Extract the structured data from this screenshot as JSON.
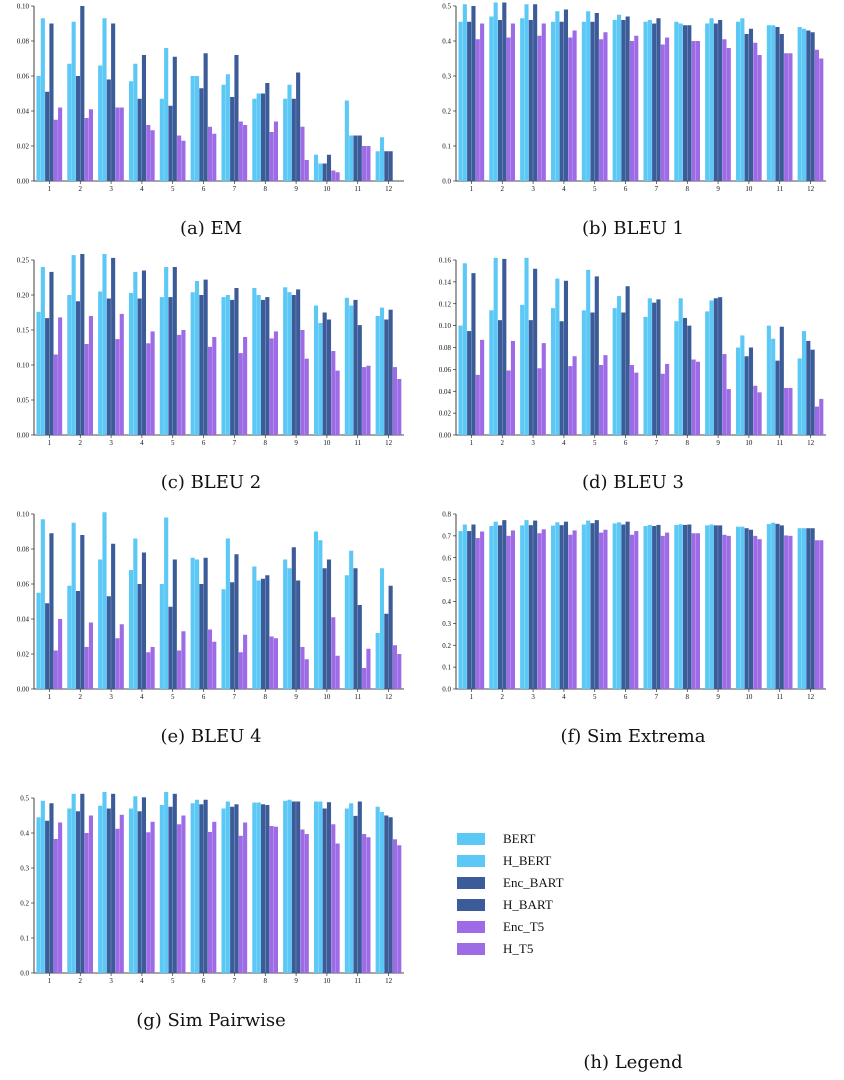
{
  "legend": {
    "items": [
      {
        "label": "BERT",
        "color": "#5BC8F5"
      },
      {
        "label": "H_BERT",
        "color": "#5BC8F5"
      },
      {
        "label": "Enc_BART",
        "color": "#3C5C99"
      },
      {
        "label": "H_BART",
        "color": "#3C5C99"
      },
      {
        "label": "Enc_T5",
        "color": "#9E6BE6"
      },
      {
        "label": "H_T5",
        "color": "#9E6BE6"
      }
    ],
    "caption": "(h) Legend"
  },
  "chart_data": [
    {
      "type": "bar",
      "caption": "(a) EM",
      "categories": [
        "1",
        "2",
        "3",
        "4",
        "5",
        "6",
        "7",
        "8",
        "9",
        "10",
        "11",
        "12"
      ],
      "ylim": [
        0,
        0.1
      ],
      "yticks": [
        "0.00",
        "0.02",
        "0.04",
        "0.06",
        "0.08",
        "0.10"
      ],
      "series": [
        {
          "name": "BERT",
          "color": "#5BC8F5",
          "values": [
            0.06,
            0.067,
            0.066,
            0.057,
            0.047,
            0.06,
            0.055,
            0.047,
            0.047,
            0.015,
            0.046,
            0.017
          ]
        },
        {
          "name": "H_BERT",
          "color": "#5BC8F5",
          "values": [
            0.093,
            0.091,
            0.093,
            0.067,
            0.076,
            0.06,
            0.061,
            0.05,
            0.055,
            0.01,
            0.026,
            0.025
          ]
        },
        {
          "name": "Enc_BART",
          "color": "#3C5C99",
          "values": [
            0.051,
            0.06,
            0.058,
            0.047,
            0.043,
            0.053,
            0.048,
            0.05,
            0.047,
            0.01,
            0.026,
            0.017
          ]
        },
        {
          "name": "H_BART",
          "color": "#3C5C99",
          "values": [
            0.09,
            0.1,
            0.09,
            0.072,
            0.071,
            0.073,
            0.072,
            0.056,
            0.062,
            0.015,
            0.026,
            0.017
          ]
        },
        {
          "name": "Enc_T5",
          "color": "#9E6BE6",
          "values": [
            0.035,
            0.036,
            0.042,
            0.032,
            0.026,
            0.031,
            0.034,
            0.028,
            0.031,
            0.006,
            0.02,
            0.0
          ]
        },
        {
          "name": "H_T5",
          "color": "#9E6BE6",
          "values": [
            0.042,
            0.041,
            0.042,
            0.029,
            0.023,
            0.027,
            0.032,
            0.034,
            0.012,
            0.005,
            0.02,
            0.0
          ]
        }
      ]
    },
    {
      "type": "bar",
      "caption": "(b) BLEU 1",
      "categories": [
        "1",
        "2",
        "3",
        "4",
        "5",
        "6",
        "7",
        "8",
        "9",
        "10",
        "11",
        "12"
      ],
      "ylim": [
        0,
        0.5
      ],
      "yticks": [
        "0.0",
        "0.1",
        "0.2",
        "0.3",
        "0.4",
        "0.5"
      ],
      "series": [
        {
          "name": "BERT",
          "color": "#5BC8F5",
          "values": [
            0.455,
            0.47,
            0.465,
            0.455,
            0.455,
            0.46,
            0.455,
            0.455,
            0.45,
            0.455,
            0.445,
            0.44
          ]
        },
        {
          "name": "H_BERT",
          "color": "#5BC8F5",
          "values": [
            0.505,
            0.51,
            0.505,
            0.485,
            0.485,
            0.475,
            0.46,
            0.45,
            0.465,
            0.465,
            0.445,
            0.435
          ]
        },
        {
          "name": "Enc_BART",
          "color": "#3C5C99",
          "values": [
            0.455,
            0.46,
            0.46,
            0.455,
            0.455,
            0.46,
            0.45,
            0.445,
            0.45,
            0.42,
            0.44,
            0.43
          ]
        },
        {
          "name": "H_BART",
          "color": "#3C5C99",
          "values": [
            0.5,
            0.51,
            0.505,
            0.49,
            0.48,
            0.47,
            0.465,
            0.445,
            0.46,
            0.435,
            0.42,
            0.425
          ]
        },
        {
          "name": "Enc_T5",
          "color": "#9E6BE6",
          "values": [
            0.405,
            0.41,
            0.415,
            0.41,
            0.405,
            0.4,
            0.39,
            0.4,
            0.405,
            0.395,
            0.365,
            0.375
          ]
        },
        {
          "name": "H_T5",
          "color": "#9E6BE6",
          "values": [
            0.45,
            0.45,
            0.45,
            0.43,
            0.425,
            0.415,
            0.41,
            0.4,
            0.38,
            0.36,
            0.365,
            0.35
          ]
        }
      ]
    },
    {
      "type": "bar",
      "caption": "(c) BLEU 2",
      "categories": [
        "1",
        "2",
        "3",
        "4",
        "5",
        "6",
        "7",
        "8",
        "9",
        "10",
        "11",
        "12"
      ],
      "ylim": [
        0,
        0.25
      ],
      "yticks": [
        "0.00",
        "0.05",
        "0.10",
        "0.15",
        "0.20",
        "0.25"
      ],
      "series": [
        {
          "name": "BERT",
          "color": "#5BC8F5",
          "values": [
            0.176,
            0.2,
            0.205,
            0.203,
            0.197,
            0.204,
            0.197,
            0.21,
            0.211,
            0.185,
            0.196,
            0.17
          ]
        },
        {
          "name": "H_BERT",
          "color": "#5BC8F5",
          "values": [
            0.24,
            0.257,
            0.262,
            0.233,
            0.24,
            0.22,
            0.2,
            0.2,
            0.204,
            0.16,
            0.185,
            0.182
          ]
        },
        {
          "name": "Enc_BART",
          "color": "#3C5C99",
          "values": [
            0.167,
            0.191,
            0.195,
            0.195,
            0.197,
            0.2,
            0.193,
            0.193,
            0.2,
            0.175,
            0.193,
            0.165
          ]
        },
        {
          "name": "H_BART",
          "color": "#3C5C99",
          "values": [
            0.233,
            0.26,
            0.253,
            0.235,
            0.24,
            0.222,
            0.21,
            0.197,
            0.208,
            0.165,
            0.157,
            0.179
          ]
        },
        {
          "name": "Enc_T5",
          "color": "#9E6BE6",
          "values": [
            0.115,
            0.13,
            0.137,
            0.131,
            0.143,
            0.126,
            0.117,
            0.138,
            0.15,
            0.12,
            0.097,
            0.097
          ]
        },
        {
          "name": "H_T5",
          "color": "#9E6BE6",
          "values": [
            0.168,
            0.17,
            0.173,
            0.148,
            0.15,
            0.14,
            0.14,
            0.148,
            0.109,
            0.092,
            0.099,
            0.08
          ]
        }
      ]
    },
    {
      "type": "bar",
      "caption": "(d) BLEU 3",
      "categories": [
        "1",
        "2",
        "3",
        "4",
        "5",
        "6",
        "7",
        "8",
        "9",
        "10",
        "11",
        "12"
      ],
      "ylim": [
        0,
        0.16
      ],
      "yticks": [
        "0.00",
        "0.02",
        "0.04",
        "0.06",
        "0.08",
        "0.10",
        "0.12",
        "0.14",
        "0.16"
      ],
      "series": [
        {
          "name": "BERT",
          "color": "#5BC8F5",
          "values": [
            0.1,
            0.114,
            0.119,
            0.116,
            0.114,
            0.116,
            0.108,
            0.104,
            0.113,
            0.08,
            0.1,
            0.07
          ]
        },
        {
          "name": "H_BERT",
          "color": "#5BC8F5",
          "values": [
            0.157,
            0.162,
            0.162,
            0.143,
            0.151,
            0.127,
            0.125,
            0.125,
            0.123,
            0.091,
            0.088,
            0.095
          ]
        },
        {
          "name": "Enc_BART",
          "color": "#3C5C99",
          "values": [
            0.095,
            0.105,
            0.105,
            0.104,
            0.112,
            0.112,
            0.121,
            0.107,
            0.125,
            0.072,
            0.068,
            0.086
          ]
        },
        {
          "name": "H_BART",
          "color": "#3C5C99",
          "values": [
            0.148,
            0.161,
            0.152,
            0.141,
            0.145,
            0.136,
            0.124,
            0.1,
            0.126,
            0.08,
            0.099,
            0.078
          ]
        },
        {
          "name": "Enc_T5",
          "color": "#9E6BE6",
          "values": [
            0.055,
            0.059,
            0.061,
            0.063,
            0.064,
            0.064,
            0.056,
            0.069,
            0.074,
            0.045,
            0.043,
            0.026
          ]
        },
        {
          "name": "H_T5",
          "color": "#9E6BE6",
          "values": [
            0.087,
            0.086,
            0.084,
            0.072,
            0.073,
            0.057,
            0.065,
            0.067,
            0.042,
            0.039,
            0.043,
            0.033
          ]
        }
      ]
    },
    {
      "type": "bar",
      "caption": "(e) BLEU 4",
      "categories": [
        "1",
        "2",
        "3",
        "4",
        "5",
        "6",
        "7",
        "8",
        "9",
        "10",
        "11",
        "12"
      ],
      "ylim": [
        0,
        0.1
      ],
      "yticks": [
        "0.00",
        "0.02",
        "0.04",
        "0.06",
        "0.08",
        "0.10"
      ],
      "series": [
        {
          "name": "BERT",
          "color": "#5BC8F5",
          "values": [
            0.055,
            0.059,
            0.074,
            0.068,
            0.06,
            0.075,
            0.057,
            0.07,
            0.074,
            0.09,
            0.065,
            0.032
          ]
        },
        {
          "name": "H_BERT",
          "color": "#5BC8F5",
          "values": [
            0.097,
            0.095,
            0.101,
            0.086,
            0.098,
            0.074,
            0.086,
            0.062,
            0.069,
            0.085,
            0.079,
            0.069
          ]
        },
        {
          "name": "Enc_BART",
          "color": "#3C5C99",
          "values": [
            0.049,
            0.056,
            0.053,
            0.06,
            0.047,
            0.06,
            0.061,
            0.063,
            0.081,
            0.069,
            0.069,
            0.043
          ]
        },
        {
          "name": "H_BART",
          "color": "#3C5C99",
          "values": [
            0.089,
            0.088,
            0.083,
            0.078,
            0.074,
            0.075,
            0.077,
            0.065,
            0.062,
            0.074,
            0.048,
            0.059
          ]
        },
        {
          "name": "Enc_T5",
          "color": "#9E6BE6",
          "values": [
            0.022,
            0.024,
            0.029,
            0.021,
            0.022,
            0.034,
            0.021,
            0.03,
            0.024,
            0.041,
            0.012,
            0.025
          ]
        },
        {
          "name": "H_T5",
          "color": "#9E6BE6",
          "values": [
            0.04,
            0.038,
            0.037,
            0.024,
            0.033,
            0.027,
            0.031,
            0.029,
            0.017,
            0.019,
            0.023,
            0.02
          ]
        }
      ]
    },
    {
      "type": "bar",
      "caption": "(f) Sim Extrema",
      "categories": [
        "1",
        "2",
        "3",
        "4",
        "5",
        "6",
        "7",
        "8",
        "9",
        "10",
        "11",
        "12"
      ],
      "ylim": [
        0,
        0.8
      ],
      "yticks": [
        "0.0",
        "0.1",
        "0.2",
        "0.3",
        "0.4",
        "0.5",
        "0.6",
        "0.7",
        "0.8"
      ],
      "series": [
        {
          "name": "BERT",
          "color": "#5BC8F5",
          "values": [
            0.722,
            0.745,
            0.748,
            0.747,
            0.752,
            0.757,
            0.745,
            0.75,
            0.748,
            0.742,
            0.754,
            0.735
          ]
        },
        {
          "name": "H_BERT",
          "color": "#5BC8F5",
          "values": [
            0.752,
            0.765,
            0.772,
            0.762,
            0.77,
            0.762,
            0.75,
            0.753,
            0.752,
            0.742,
            0.76,
            0.735
          ]
        },
        {
          "name": "Enc_BART",
          "color": "#3C5C99",
          "values": [
            0.722,
            0.748,
            0.749,
            0.749,
            0.758,
            0.752,
            0.745,
            0.75,
            0.748,
            0.735,
            0.755,
            0.735
          ]
        },
        {
          "name": "H_BART",
          "color": "#3C5C99",
          "values": [
            0.752,
            0.772,
            0.77,
            0.765,
            0.772,
            0.765,
            0.75,
            0.752,
            0.748,
            0.728,
            0.748,
            0.735
          ]
        },
        {
          "name": "Enc_T5",
          "color": "#9E6BE6",
          "values": [
            0.69,
            0.7,
            0.712,
            0.705,
            0.715,
            0.705,
            0.7,
            0.712,
            0.705,
            0.7,
            0.702,
            0.68
          ]
        },
        {
          "name": "H_T5",
          "color": "#9E6BE6",
          "values": [
            0.72,
            0.725,
            0.73,
            0.725,
            0.728,
            0.722,
            0.715,
            0.712,
            0.7,
            0.685,
            0.7,
            0.68
          ]
        }
      ]
    },
    {
      "type": "bar",
      "caption": "(g) Sim Pairwise",
      "categories": [
        "1",
        "2",
        "3",
        "4",
        "5",
        "6",
        "7",
        "8",
        "9",
        "10",
        "11",
        "12"
      ],
      "ylim": [
        0,
        0.5
      ],
      "yticks": [
        "0.0",
        "0.1",
        "0.2",
        "0.3",
        "0.4",
        "0.5"
      ],
      "series": [
        {
          "name": "BERT",
          "color": "#5BC8F5",
          "values": [
            0.445,
            0.47,
            0.478,
            0.47,
            0.48,
            0.485,
            0.47,
            0.487,
            0.492,
            0.49,
            0.47,
            0.475
          ]
        },
        {
          "name": "H_BERT",
          "color": "#5BC8F5",
          "values": [
            0.492,
            0.512,
            0.52,
            0.505,
            0.517,
            0.495,
            0.49,
            0.487,
            0.495,
            0.49,
            0.485,
            0.46
          ]
        },
        {
          "name": "Enc_BART",
          "color": "#3C5C99",
          "values": [
            0.435,
            0.462,
            0.47,
            0.462,
            0.475,
            0.482,
            0.475,
            0.482,
            0.49,
            0.47,
            0.449,
            0.45
          ]
        },
        {
          "name": "H_BART",
          "color": "#3C5C99",
          "values": [
            0.485,
            0.512,
            0.512,
            0.502,
            0.512,
            0.495,
            0.482,
            0.48,
            0.49,
            0.488,
            0.49,
            0.445
          ]
        },
        {
          "name": "Enc_T5",
          "color": "#9E6BE6",
          "values": [
            0.383,
            0.4,
            0.412,
            0.402,
            0.425,
            0.403,
            0.392,
            0.42,
            0.41,
            0.425,
            0.397,
            0.382
          ]
        },
        {
          "name": "H_T5",
          "color": "#9E6BE6",
          "values": [
            0.43,
            0.45,
            0.452,
            0.432,
            0.45,
            0.432,
            0.43,
            0.418,
            0.397,
            0.37,
            0.388,
            0.365
          ]
        }
      ]
    }
  ]
}
